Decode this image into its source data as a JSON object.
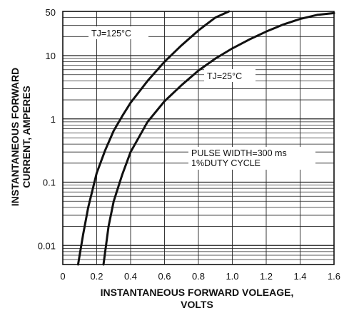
{
  "chart_data": {
    "type": "line",
    "xlabel_line1": "INSTANTANEOUS FORWARD VOLEAGE,",
    "xlabel_line2": "VOLTS",
    "ylabel_line1": "INSTANTANEOUS FORWARD",
    "ylabel_line2": "CURRENT, AMPERES",
    "x_ticks": [
      "0",
      "0.2",
      "0.4",
      "0.6",
      "0.8",
      "1.0",
      "1.2",
      "1.4",
      "1.6"
    ],
    "y_ticks": [
      "0.01",
      "0.1",
      "1",
      "10",
      "50"
    ],
    "xlim": [
      0,
      1.6
    ],
    "ylim": [
      0.005,
      50
    ],
    "yscale": "log",
    "grid": true,
    "annotations": {
      "tj125": "TJ=125°C",
      "tj25": "TJ=25°C",
      "pulse_line1": "PULSE WIDTH=300 ms",
      "pulse_line2": "1%DUTY CYCLE"
    },
    "series": [
      {
        "name": "TJ=125°C",
        "x": [
          0.09,
          0.12,
          0.15,
          0.2,
          0.25,
          0.3,
          0.35,
          0.4,
          0.5,
          0.6,
          0.7,
          0.8,
          0.9,
          0.98
        ],
        "y": [
          0.005,
          0.015,
          0.04,
          0.14,
          0.32,
          0.65,
          1.1,
          1.8,
          4.0,
          8.0,
          14.5,
          25.0,
          40.0,
          50.0
        ]
      },
      {
        "name": "TJ=25°C",
        "x": [
          0.24,
          0.25,
          0.27,
          0.3,
          0.35,
          0.4,
          0.5,
          0.6,
          0.7,
          0.8,
          0.9,
          1.0,
          1.1,
          1.2,
          1.3,
          1.4,
          1.5,
          1.6
        ],
        "y": [
          0.005,
          0.008,
          0.02,
          0.05,
          0.13,
          0.3,
          0.9,
          1.9,
          3.4,
          5.8,
          9.0,
          13.0,
          18.0,
          24.0,
          31.0,
          38.0,
          44.0,
          47.0
        ]
      }
    ]
  }
}
